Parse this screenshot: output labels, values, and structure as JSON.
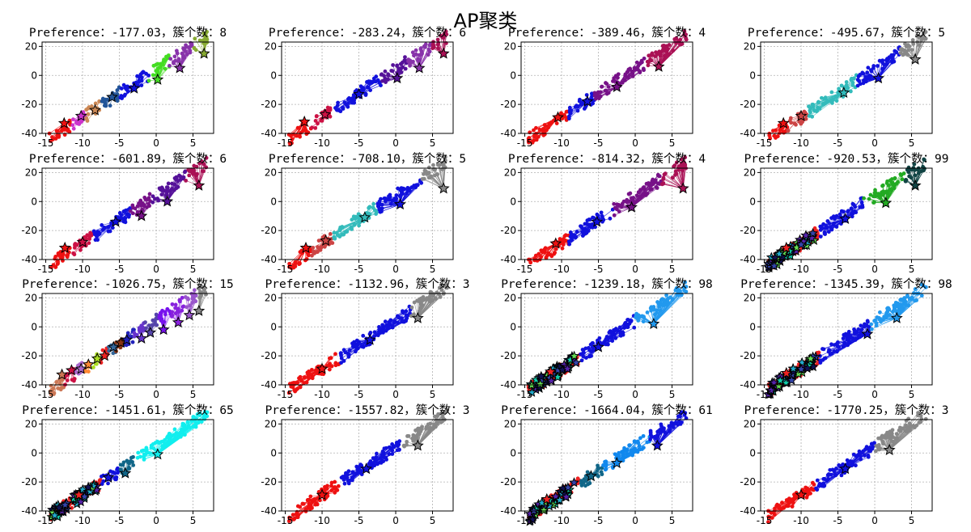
{
  "figure": {
    "title": "AP聚类"
  },
  "chart_data": {
    "type": "scatter",
    "title": "AP聚类",
    "grid": true,
    "xlim": [
      -15.5,
      7.8
    ],
    "ylim": [
      -40,
      23
    ],
    "xticks": [
      -15,
      -10,
      -5,
      0,
      5
    ],
    "yticks": [
      20,
      0,
      -20,
      -40
    ],
    "subplots": [
      {
        "title": "Preference：-177.03，簇个数：8",
        "preference": -177.03,
        "clusters": 8,
        "groups": [
          {
            "color": "#ee1111",
            "x_range": [
              -14.5,
              -11.5
            ],
            "exemplar": [
              -12.5,
              -33
            ]
          },
          {
            "color": "#cc33cc",
            "x_range": [
              -11.5,
              -9.5
            ],
            "exemplar": [
              -10.2,
              -28
            ]
          },
          {
            "color": "#cc8855",
            "x_range": [
              -9.5,
              -7.5
            ],
            "exemplar": [
              -8.3,
              -24
            ]
          },
          {
            "color": "#225599",
            "x_range": [
              -7.5,
              -5
            ],
            "exemplar": [
              -6.0,
              -15
            ]
          },
          {
            "color": "#1111dd",
            "x_range": [
              -5,
              -1
            ],
            "exemplar": [
              -3.0,
              -9
            ]
          },
          {
            "color": "#44dd22",
            "x_range": [
              -1,
              1.8
            ],
            "exemplar": [
              0.2,
              -3
            ]
          },
          {
            "color": "#8833aa",
            "x_range": [
              1.8,
              5
            ],
            "exemplar": [
              3.2,
              5
            ]
          },
          {
            "color": "#88aa33",
            "x_range": [
              5,
              7
            ],
            "exemplar": [
              6.5,
              15
            ]
          }
        ]
      },
      {
        "title": "Preference：-283.24，簇个数：6",
        "preference": -283.24,
        "clusters": 6,
        "groups": [
          {
            "color": "#ee1111",
            "x_range": [
              -14.5,
              -11.5
            ],
            "exemplar": [
              -12.4,
              -32
            ]
          },
          {
            "color": "#cc1144",
            "x_range": [
              -11.5,
              -8.5
            ],
            "exemplar": [
              -9.6,
              -27
            ]
          },
          {
            "color": "#1111dd",
            "x_range": [
              -8.5,
              -2
            ],
            "exemplar": [
              -5.0,
              -13
            ]
          },
          {
            "color": "#551199",
            "x_range": [
              -2,
              1.5
            ],
            "exemplar": [
              0.2,
              -2
            ]
          },
          {
            "color": "#8833aa",
            "x_range": [
              1.5,
              5
            ],
            "exemplar": [
              3.2,
              5
            ]
          },
          {
            "color": "#aa1155",
            "x_range": [
              5,
              7
            ],
            "exemplar": [
              6.5,
              15
            ]
          }
        ]
      },
      {
        "title": "Preference：-389.46，簇个数：4",
        "preference": -389.46,
        "clusters": 4,
        "groups": [
          {
            "color": "#ee1111",
            "x_range": [
              -14.5,
              -9
            ],
            "exemplar": [
              -10.5,
              -29
            ]
          },
          {
            "color": "#1111dd",
            "x_range": [
              -9,
              -5.5
            ],
            "exemplar": [
              -6.5,
              -18
            ]
          },
          {
            "color": "#771188",
            "x_range": [
              -5.5,
              1.5
            ],
            "exemplar": [
              -2.5,
              -8
            ]
          },
          {
            "color": "#aa1155",
            "x_range": [
              1.5,
              7
            ],
            "exemplar": [
              3.2,
              6
            ]
          }
        ]
      },
      {
        "title": "Preference：-495.67，簇个数：5",
        "preference": -495.67,
        "clusters": 5,
        "groups": [
          {
            "color": "#ee1111",
            "x_range": [
              -14.5,
              -11.8
            ],
            "exemplar": [
              -12.4,
              -33
            ]
          },
          {
            "color": "#cc4444",
            "x_range": [
              -11.8,
              -9
            ],
            "exemplar": [
              -10.0,
              -28
            ]
          },
          {
            "color": "#33bbbb",
            "x_range": [
              -9,
              -2.5
            ],
            "exemplar": [
              -4.2,
              -12
            ]
          },
          {
            "color": "#1111dd",
            "x_range": [
              -2.5,
              3.5
            ],
            "exemplar": [
              0.5,
              -2
            ]
          },
          {
            "color": "#888888",
            "x_range": [
              3.5,
              7
            ],
            "exemplar": [
              5.5,
              11
            ]
          }
        ]
      },
      {
        "title": "Preference：-601.89，簇个数：6",
        "preference": -601.89,
        "clusters": 6,
        "groups": [
          {
            "color": "#ee1111",
            "x_range": [
              -14.5,
              -11.5
            ],
            "exemplar": [
              -12.4,
              -32
            ]
          },
          {
            "color": "#cc1144",
            "x_range": [
              -11.5,
              -8.5
            ],
            "exemplar": [
              -10.0,
              -28
            ]
          },
          {
            "color": "#1111dd",
            "x_range": [
              -8.5,
              -3.5
            ],
            "exemplar": [
              -5.5,
              -14
            ]
          },
          {
            "color": "#771188",
            "x_range": [
              -3.5,
              -0.5
            ],
            "exemplar": [
              -2.0,
              -10
            ]
          },
          {
            "color": "#551199",
            "x_range": [
              -0.5,
              4
            ],
            "exemplar": [
              1.5,
              0
            ]
          },
          {
            "color": "#aa1155",
            "x_range": [
              4,
              7
            ],
            "exemplar": [
              5.8,
              11
            ]
          }
        ]
      },
      {
        "title": "Preference：-708.10，簇个数：5",
        "preference": -708.1,
        "clusters": 5,
        "groups": [
          {
            "color": "#ee1111",
            "x_range": [
              -14.5,
              -11.5
            ],
            "exemplar": [
              -12.2,
              -32
            ]
          },
          {
            "color": "#cc4444",
            "x_range": [
              -11.5,
              -8.5
            ],
            "exemplar": [
              -9.5,
              -27
            ]
          },
          {
            "color": "#33bbbb",
            "x_range": [
              -8.5,
              -2.5
            ],
            "exemplar": [
              -4.2,
              -11
            ]
          },
          {
            "color": "#1111dd",
            "x_range": [
              -2.5,
              3.5
            ],
            "exemplar": [
              0.6,
              -2
            ]
          },
          {
            "color": "#888888",
            "x_range": [
              3.5,
              7
            ],
            "exemplar": [
              6.5,
              9
            ]
          }
        ]
      },
      {
        "title": "Preference：-814.32，簇个数：4",
        "preference": -814.32,
        "clusters": 4,
        "groups": [
          {
            "color": "#ee1111",
            "x_range": [
              -14.5,
              -9
            ],
            "exemplar": [
              -10.8,
              -29
            ]
          },
          {
            "color": "#1111dd",
            "x_range": [
              -9,
              -3
            ],
            "exemplar": [
              -5.2,
              -14
            ]
          },
          {
            "color": "#771188",
            "x_range": [
              -3,
              3.5
            ],
            "exemplar": [
              -0.5,
              -4
            ]
          },
          {
            "color": "#aa1155",
            "x_range": [
              3.5,
              7
            ],
            "exemplar": [
              6.5,
              9
            ]
          }
        ]
      },
      {
        "title": "Preference：-920.53，簇个数：99",
        "preference": -920.53,
        "clusters": 99,
        "dense": true,
        "groups": [
          {
            "color": "#ee2222",
            "x_range": [
              -14.5,
              -7.5
            ],
            "exemplar": [
              -12.0,
              -32
            ]
          },
          {
            "color": "#1111dd",
            "x_range": [
              -7.5,
              -1.5
            ],
            "exemplar": [
              -4.0,
              -12
            ]
          },
          {
            "color": "#22aa22",
            "x_range": [
              -1.5,
              4
            ],
            "exemplar": [
              1.5,
              -1
            ]
          },
          {
            "color": "#114444",
            "x_range": [
              4,
              7
            ],
            "exemplar": [
              5.5,
              11
            ]
          }
        ]
      },
      {
        "title": "Preference：-1026.75，簇个数：15",
        "preference": -1026.75,
        "clusters": 15,
        "groups": [
          {
            "color": "#cc7755",
            "x_range": [
              -14.5,
              -12.5
            ],
            "exemplar": [
              -12.8,
              -33
            ]
          },
          {
            "color": "#cc1144",
            "x_range": [
              -12.5,
              -11
            ],
            "exemplar": [
              -11.5,
              -30
            ]
          },
          {
            "color": "#aa66cc",
            "x_range": [
              -11,
              -9.8
            ],
            "exemplar": [
              -10.2,
              -29
            ]
          },
          {
            "color": "#ff8833",
            "x_range": [
              -9.8,
              -8.8
            ],
            "exemplar": [
              -9.2,
              -26
            ]
          },
          {
            "color": "#aadd22",
            "x_range": [
              -8.8,
              -7.5
            ],
            "exemplar": [
              -8.0,
              -22
            ]
          },
          {
            "color": "#ee2222",
            "x_range": [
              -7.5,
              -6.5
            ],
            "exemplar": [
              -7.0,
              -20
            ]
          },
          {
            "color": "#336699",
            "x_range": [
              -6.5,
              -5.5
            ],
            "exemplar": [
              -5.8,
              -14
            ]
          },
          {
            "color": "#883311",
            "x_range": [
              -5.5,
              -4.5
            ],
            "exemplar": [
              -4.8,
              -11
            ]
          },
          {
            "color": "#2222bb",
            "x_range": [
              -4.5,
              -3
            ],
            "exemplar": [
              -4.0,
              -9
            ]
          },
          {
            "color": "#6633cc",
            "x_range": [
              -3,
              -1.5
            ],
            "exemplar": [
              -2.0,
              -8
            ]
          },
          {
            "color": "#5544aa",
            "x_range": [
              -1.5,
              0.2
            ],
            "exemplar": [
              -0.8,
              -4
            ]
          },
          {
            "color": "#7711ee",
            "x_range": [
              0.2,
              2
            ],
            "exemplar": [
              1.0,
              -2
            ]
          },
          {
            "color": "#8822dd",
            "x_range": [
              2,
              3.8
            ],
            "exemplar": [
              3.0,
              3
            ]
          },
          {
            "color": "#9955cc",
            "x_range": [
              3.8,
              5.5
            ],
            "exemplar": [
              4.5,
              8
            ]
          },
          {
            "color": "#888888",
            "x_range": [
              5.5,
              7
            ],
            "exemplar": [
              5.8,
              11
            ]
          }
        ]
      },
      {
        "title": "Preference：-1132.96，簇个数：3",
        "preference": -1132.96,
        "clusters": 3,
        "groups": [
          {
            "color": "#ee1111",
            "x_range": [
              -14.5,
              -7.5
            ],
            "exemplar": [
              -10.0,
              -29
            ]
          },
          {
            "color": "#1111dd",
            "x_range": [
              -7.5,
              2
            ],
            "exemplar": [
              -3.5,
              -9
            ]
          },
          {
            "color": "#888888",
            "x_range": [
              2,
              7
            ],
            "exemplar": [
              3.0,
              6
            ]
          }
        ]
      },
      {
        "title": "Preference：-1239.18，簇个数：98",
        "preference": -1239.18,
        "clusters": 98,
        "dense": true,
        "groups": [
          {
            "color": "#ee2222",
            "x_range": [
              -14.5,
              -7.5
            ],
            "exemplar": [
              -11.5,
              -31
            ]
          },
          {
            "color": "#1111dd",
            "x_range": [
              -7.5,
              0
            ],
            "exemplar": [
              -5.0,
              -14
            ]
          },
          {
            "color": "#2299ee",
            "x_range": [
              0,
              7
            ],
            "exemplar": [
              2.5,
              2
            ]
          }
        ]
      },
      {
        "title": "Preference：-1345.39，簇个数：98",
        "preference": -1345.39,
        "clusters": 98,
        "dense": true,
        "groups": [
          {
            "color": "#ee2222",
            "x_range": [
              -14.5,
              -7.5
            ],
            "exemplar": [
              -12.0,
              -32
            ]
          },
          {
            "color": "#1111dd",
            "x_range": [
              -7.5,
              -0.5
            ],
            "exemplar": [
              -1.0,
              -5
            ]
          },
          {
            "color": "#2299ee",
            "x_range": [
              -0.5,
              7
            ],
            "exemplar": [
              3.0,
              6
            ]
          }
        ]
      },
      {
        "title": "Preference：-1451.61，簇个数：65",
        "preference": -1451.61,
        "clusters": 65,
        "dense": true,
        "groups": [
          {
            "color": "#ee2222",
            "x_range": [
              -14.5,
              -7.5
            ],
            "exemplar": [
              -10.5,
              -29
            ]
          },
          {
            "color": "#1111dd",
            "x_range": [
              -7.5,
              -5
            ],
            "exemplar": [
              -6.5,
              -17
            ]
          },
          {
            "color": "#116688",
            "x_range": [
              -5,
              -3
            ],
            "exemplar": [
              -4.2,
              -14
            ]
          },
          {
            "color": "#11eeee",
            "x_range": [
              -3,
              7
            ],
            "exemplar": [
              0.2,
              -1
            ]
          }
        ]
      },
      {
        "title": "Preference：-1557.82，簇个数：3",
        "preference": -1557.82,
        "clusters": 3,
        "groups": [
          {
            "color": "#ee1111",
            "x_range": [
              -14.5,
              -7.5
            ],
            "exemplar": [
              -10.0,
              -29
            ]
          },
          {
            "color": "#1111dd",
            "x_range": [
              -7.5,
              1
            ],
            "exemplar": [
              -4.0,
              -11
            ]
          },
          {
            "color": "#888888",
            "x_range": [
              1,
              7
            ],
            "exemplar": [
              3.0,
              5
            ]
          }
        ]
      },
      {
        "title": "Preference：-1664.04，簇个数：61",
        "preference": -1664.04,
        "clusters": 61,
        "dense": true,
        "groups": [
          {
            "color": "#ee2222",
            "x_range": [
              -14.5,
              -7.5
            ],
            "exemplar": [
              -12.0,
              -32
            ]
          },
          {
            "color": "#116688",
            "x_range": [
              -7.5,
              -4.5
            ],
            "exemplar": [
              -6.0,
              -16
            ]
          },
          {
            "color": "#1188ee",
            "x_range": [
              -4.5,
              2
            ],
            "exemplar": [
              -2.5,
              -7
            ]
          },
          {
            "color": "#1111dd",
            "x_range": [
              2,
              7
            ],
            "exemplar": [
              3.0,
              5
            ]
          }
        ]
      },
      {
        "title": "Preference：-1770.25，簇个数：3",
        "preference": -1770.25,
        "clusters": 3,
        "groups": [
          {
            "color": "#ee1111",
            "x_range": [
              -14.5,
              -8
            ],
            "exemplar": [
              -10.0,
              -29
            ]
          },
          {
            "color": "#1111dd",
            "x_range": [
              -8,
              0
            ],
            "exemplar": [
              -4.0,
              -11
            ]
          },
          {
            "color": "#888888",
            "x_range": [
              0,
              7
            ],
            "exemplar": [
              2.0,
              2
            ]
          }
        ]
      }
    ]
  }
}
